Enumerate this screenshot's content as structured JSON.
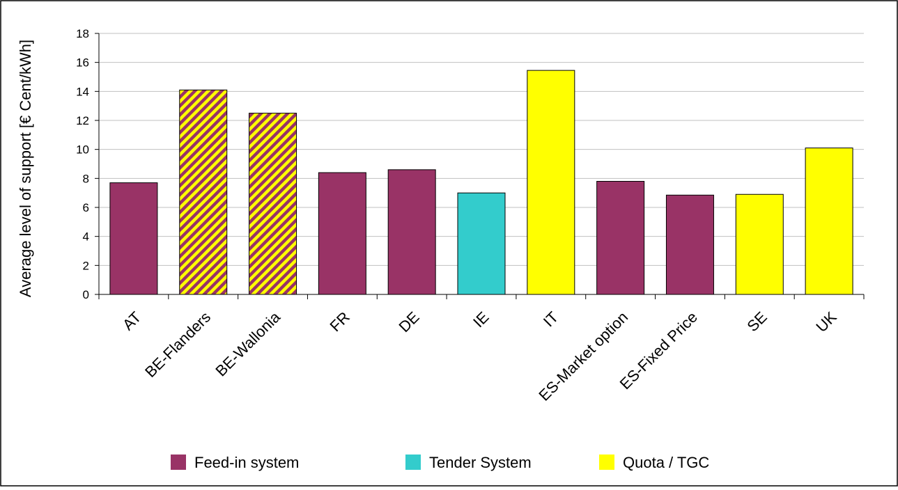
{
  "chart_data": {
    "type": "bar",
    "title": "",
    "xlabel": "",
    "ylabel": "Average level of support [€ Cent/kWh]",
    "ylim": [
      0,
      18
    ],
    "yticks": [
      0,
      2,
      4,
      6,
      8,
      10,
      12,
      14,
      16,
      18
    ],
    "grid": true,
    "legend_position": "bottom",
    "categories": [
      "AT",
      "BE-Flanders",
      "BE-Wallonia",
      "FR",
      "DE",
      "IE",
      "IT",
      "ES-Market option",
      "ES-Fixed Price",
      "SE",
      "UK"
    ],
    "values": [
      7.7,
      14.1,
      12.5,
      8.4,
      8.6,
      7.0,
      15.45,
      7.8,
      6.85,
      6.9,
      10.1
    ],
    "bar_system": [
      "feed-in",
      "quota-striped",
      "quota-striped",
      "feed-in",
      "feed-in",
      "tender",
      "quota",
      "feed-in",
      "feed-in",
      "quota",
      "quota"
    ],
    "legend": [
      {
        "key": "feed-in",
        "label": "Feed-in system",
        "color": "#993366"
      },
      {
        "key": "tender",
        "label": "Tender System",
        "color": "#33CCCC"
      },
      {
        "key": "quota",
        "label": "Quota / TGC",
        "color": "#FFFF00"
      }
    ]
  }
}
